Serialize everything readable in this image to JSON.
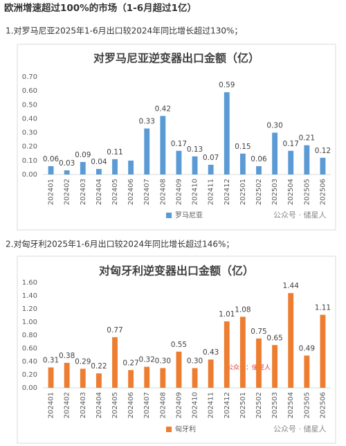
{
  "heading": "欧洲增速超过100%的市场（1-6月超过1亿）",
  "paragraphs": [
    "1.对罗马尼亚2025年1-6月出口较2024年同比增长超过130%；",
    "2.对匈牙利2025年1-6月出口较2024年同比增长超过146%；"
  ],
  "watermarks": [
    "公众号 · 储星人",
    "公众号：储星人",
    "公众号 · 储星人"
  ],
  "chart_data": [
    {
      "type": "bar",
      "title": "对罗马尼亚逆变器出口金额（亿）",
      "categories": [
        "202401",
        "202402",
        "202403",
        "202404",
        "202405",
        "202406",
        "202407",
        "202408",
        "202409",
        "202410",
        "202411",
        "202412",
        "202501",
        "202502",
        "202503",
        "202504",
        "202505",
        "202506"
      ],
      "series": [
        {
          "name": "罗马尼亚",
          "color": "#5b9bd5",
          "values": [
            0.06,
            0.03,
            0.09,
            0.04,
            0.11,
            0.1,
            0.33,
            0.42,
            0.17,
            0.13,
            0.07,
            0.59,
            0.15,
            0.06,
            0.3,
            0.17,
            0.21,
            0.12
          ],
          "value_labels": [
            "0.06",
            "0.03",
            "0.09",
            "0.04",
            "0.11",
            null,
            "0.33",
            "0.42",
            "0.17",
            "0.13",
            "0.07",
            "0.59",
            "0.15",
            "0.06",
            "0.30",
            "0.17",
            "0.21",
            "0.12"
          ]
        }
      ],
      "ylim": [
        0,
        0.7
      ],
      "yticks": [
        {
          "value": 0,
          "label": "0.00"
        },
        {
          "value": 0.1,
          "label": "0.10"
        },
        {
          "value": 0.2,
          "label": "0.20"
        },
        {
          "value": 0.3,
          "label": "0.30"
        },
        {
          "value": 0.4,
          "label": "0.40"
        },
        {
          "value": 0.5,
          "label": "0.50"
        },
        {
          "value": 0.6,
          "label": "0.60"
        },
        {
          "value": 0.7,
          "label": "0.70"
        }
      ],
      "legend": "bottom"
    },
    {
      "type": "bar",
      "title": "对匈牙利逆变器出口金额（亿）",
      "categories": [
        "202401",
        "202402",
        "202403",
        "202404",
        "202405",
        "202406",
        "202407",
        "202408",
        "202409",
        "202410",
        "202411",
        "202412",
        "202501",
        "202502",
        "202503",
        "202504",
        "202505",
        "202506"
      ],
      "series": [
        {
          "name": "匈牙利",
          "color": "#ed7d31",
          "values": [
            0.31,
            0.38,
            0.29,
            0.22,
            0.77,
            0.27,
            0.32,
            0.3,
            0.55,
            0.3,
            0.43,
            1.01,
            1.08,
            0.75,
            0.65,
            1.44,
            0.49,
            1.11
          ],
          "value_labels": [
            "0.31",
            "0.38",
            "0.29",
            "0.22",
            "0.77",
            "0.27",
            "0.32",
            "0.30",
            "0.55",
            "0.30",
            "0.43",
            "1.01",
            "1.08",
            "0.75",
            "0.65",
            "1.44",
            "0.49",
            "1.11"
          ]
        }
      ],
      "ylim": [
        0,
        1.6
      ],
      "yticks": [
        {
          "value": 0,
          "label": "0.00"
        },
        {
          "value": 0.2,
          "label": "0.20"
        },
        {
          "value": 0.4,
          "label": "0.40"
        },
        {
          "value": 0.6,
          "label": "0.60"
        },
        {
          "value": 0.8,
          "label": "0.80"
        },
        {
          "value": 1.0,
          "label": "1.00"
        },
        {
          "value": 1.2,
          "label": "1.20"
        },
        {
          "value": 1.4,
          "label": "1.40"
        },
        {
          "value": 1.6,
          "label": "1.60"
        }
      ],
      "legend": "bottom"
    }
  ]
}
